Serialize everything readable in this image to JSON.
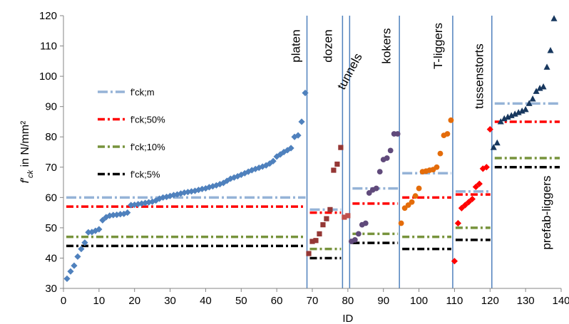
{
  "chart_data": {
    "type": "scatter",
    "title": "",
    "xlabel": "ID",
    "ylabel": "f'ck in N/mm²",
    "ylabel_main": "f′",
    "ylabel_sub": "ck",
    "ylabel_rest": " in N/mm²",
    "xlim": [
      0,
      140
    ],
    "ylim": [
      30,
      120
    ],
    "xticks": [
      0,
      10,
      20,
      30,
      40,
      50,
      60,
      70,
      80,
      90,
      100,
      110,
      120,
      130,
      140
    ],
    "yticks": [
      30,
      40,
      50,
      60,
      70,
      80,
      90,
      100,
      110,
      120
    ],
    "grid": false,
    "legend_position": "left",
    "legend": [
      {
        "label": "f'ck;m",
        "color": "#95B3D7",
        "key": "m"
      },
      {
        "label": "f'ck;50%",
        "color": "#FF0000",
        "key": "p50"
      },
      {
        "label": "f'ck;10%",
        "color": "#77933C",
        "key": "p10"
      },
      {
        "label": "f'ck;5%",
        "color": "#000000",
        "key": "p5"
      }
    ],
    "dividers": [
      68.5,
      78.5,
      80.5,
      94.5,
      109.5,
      120.5
    ],
    "group_labels": [
      {
        "text": "platen",
        "x": 66.5,
        "y": 110,
        "rotate": -90
      },
      {
        "text": "dozen",
        "x": 75.5,
        "y": 110,
        "rotate": -90
      },
      {
        "text": "tunnels",
        "x": 81.5,
        "y": 101,
        "rotate": -62
      },
      {
        "text": "kokers",
        "x": 92,
        "y": 110,
        "rotate": -90
      },
      {
        "text": "T-liggers",
        "x": 106.5,
        "y": 110,
        "rotate": -90
      },
      {
        "text": "tussenstorts",
        "x": 118,
        "y": 100,
        "rotate": -90
      },
      {
        "text": "prefab-liggers",
        "x": 137,
        "y": 55,
        "rotate": -90
      }
    ],
    "series": [
      {
        "group": "platen",
        "marker": "diamond",
        "color": "#4F81BD",
        "x": [
          1,
          2,
          3,
          4,
          5,
          6,
          7,
          8,
          9,
          10,
          11,
          12,
          13,
          14,
          15,
          16,
          17,
          18,
          19,
          20,
          21,
          22,
          23,
          24,
          25,
          26,
          27,
          28,
          29,
          30,
          31,
          32,
          33,
          34,
          35,
          36,
          37,
          38,
          39,
          40,
          41,
          42,
          43,
          44,
          45,
          46,
          47,
          48,
          49,
          50,
          51,
          52,
          53,
          54,
          55,
          56,
          57,
          58,
          59,
          60,
          61,
          62,
          63,
          64,
          65,
          66,
          67,
          68
        ],
        "y": [
          33.2,
          35.6,
          37.5,
          40.5,
          43,
          45.1,
          48.5,
          48.6,
          49,
          49.5,
          52.5,
          53.5,
          54,
          54.2,
          54.3,
          54.5,
          54.6,
          55,
          57.5,
          57.6,
          57.8,
          58,
          58.2,
          58.4,
          58.6,
          59,
          59.6,
          60,
          60.2,
          60.5,
          60.8,
          61,
          61.3,
          61.6,
          61.8,
          62,
          62.2,
          62.5,
          62.8,
          63,
          63.4,
          63.7,
          64,
          64.4,
          64.8,
          65.5,
          66.2,
          66.6,
          67,
          67.5,
          68,
          68.5,
          69,
          69.4,
          69.8,
          70.2,
          70.6,
          71.2,
          72,
          73.5,
          74.2,
          75,
          75.6,
          76.3,
          80,
          80.5,
          85,
          94.5
        ]
      },
      {
        "group": "dozen",
        "marker": "square",
        "color": "#953735",
        "x": [
          69,
          70,
          71,
          72,
          73,
          74,
          75,
          76,
          77,
          78
        ],
        "y": [
          41.5,
          45.5,
          45.8,
          48,
          51,
          53,
          56,
          69,
          71,
          76.5
        ]
      },
      {
        "group": "tunnels",
        "marker": "square",
        "color": "#C0504D",
        "x": [
          79,
          80
        ],
        "y": [
          53.5,
          54
        ]
      },
      {
        "group": "kokers",
        "marker": "circle",
        "color": "#604A7B",
        "x": [
          81,
          82,
          83,
          84,
          85,
          86,
          87,
          88,
          89,
          90,
          91,
          92,
          93,
          94
        ],
        "y": [
          45.5,
          46,
          48,
          51,
          51.5,
          61.5,
          62.5,
          63,
          68.5,
          72.5,
          73,
          75.5,
          81,
          81
        ]
      },
      {
        "group": "T-liggers",
        "marker": "circle",
        "color": "#E46C0A",
        "x": [
          95,
          96,
          97,
          98,
          99,
          100,
          101,
          102,
          103,
          104,
          105,
          106,
          107,
          108,
          109
        ],
        "y": [
          51.5,
          56.5,
          57.5,
          58.5,
          60.5,
          63,
          68.5,
          68.7,
          69,
          69.2,
          70,
          74.5,
          80.5,
          81,
          85.5
        ]
      },
      {
        "group": "tussenstorts",
        "marker": "diamond",
        "color": "#FF0000",
        "x": [
          110,
          111,
          112,
          113,
          114,
          115,
          116,
          117,
          118,
          119,
          120
        ],
        "y": [
          39,
          51.5,
          56.5,
          57.5,
          58.5,
          59.5,
          63.5,
          64.5,
          69.5,
          70,
          82.5
        ]
      },
      {
        "group": "prefab-liggers",
        "marker": "triangle",
        "color": "#17375E",
        "x": [
          121,
          122,
          123,
          124,
          125,
          126,
          127,
          128,
          129,
          130,
          131,
          132,
          133,
          134,
          135,
          136,
          137,
          138
        ],
        "y": [
          76.5,
          78,
          85,
          86,
          86.5,
          87,
          87.5,
          88,
          88.5,
          89,
          91,
          92.5,
          95,
          96,
          96.5,
          103,
          108.5,
          119
        ]
      }
    ],
    "stat_lines": [
      {
        "group": "platen",
        "x_range": [
          0,
          68.5
        ],
        "m": 60,
        "p50": 57,
        "p10": 47,
        "p5": 44
      },
      {
        "group": "dozen",
        "x_range": [
          68.5,
          78.5
        ],
        "m": 56,
        "p50": 55,
        "p10": 43,
        "p5": 40
      },
      {
        "group": "kokers",
        "x_range": [
          80.5,
          94.5
        ],
        "m": 63,
        "p50": 58,
        "p10": 48,
        "p5": 45
      },
      {
        "group": "T-liggers",
        "x_range": [
          94.5,
          109.5
        ],
        "m": 68,
        "p50": 60,
        "p10": 47,
        "p5": 43
      },
      {
        "group": "tussenstorts",
        "x_range": [
          109.5,
          120.5
        ],
        "m": 62,
        "p50": 61,
        "p10": 50,
        "p5": 46
      },
      {
        "group": "prefab-liggers",
        "x_range": [
          120.5,
          140
        ],
        "m": 91,
        "p50": 85,
        "p10": 73,
        "p5": 70
      }
    ],
    "style": {
      "divider_color": "#4F81BD",
      "axis_color": "#868686"
    }
  }
}
